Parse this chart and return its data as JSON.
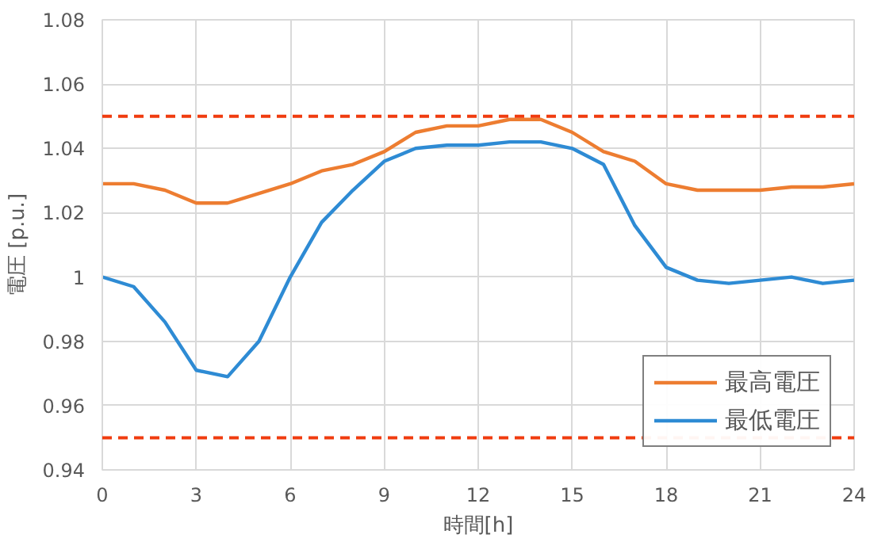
{
  "chart_data": {
    "type": "line",
    "xlabel": "時間[h]",
    "ylabel": "電圧 [p.u.]",
    "x": [
      0,
      1,
      2,
      3,
      4,
      5,
      6,
      7,
      8,
      9,
      10,
      11,
      12,
      13,
      14,
      15,
      16,
      17,
      18,
      19,
      20,
      21,
      22,
      23,
      24
    ],
    "series": [
      {
        "name": "最高電圧",
        "color": "#ed7d31",
        "values": [
          1.029,
          1.029,
          1.027,
          1.023,
          1.023,
          1.026,
          1.029,
          1.033,
          1.035,
          1.039,
          1.045,
          1.047,
          1.047,
          1.049,
          1.049,
          1.045,
          1.039,
          1.036,
          1.029,
          1.027,
          1.027,
          1.027,
          1.028,
          1.028,
          1.029
        ]
      },
      {
        "name": "最低電圧",
        "color": "#2e8bd4",
        "values": [
          1.0,
          0.997,
          0.986,
          0.971,
          0.969,
          0.98,
          1.0,
          1.017,
          1.027,
          1.036,
          1.04,
          1.041,
          1.041,
          1.042,
          1.042,
          1.04,
          1.035,
          1.016,
          1.003,
          0.999,
          0.998,
          0.999,
          1.0,
          0.998,
          0.999
        ]
      }
    ],
    "xlim": [
      0,
      24
    ],
    "xticks": [
      0,
      3,
      6,
      9,
      12,
      15,
      18,
      21,
      24
    ],
    "ylim": [
      0.94,
      1.08
    ],
    "yticks": [
      {
        "value": 0.94,
        "label": "0.94"
      },
      {
        "value": 0.96,
        "label": "0.96"
      },
      {
        "value": 0.98,
        "label": "0.98"
      },
      {
        "value": 1,
        "label": "1"
      },
      {
        "value": 1.02,
        "label": "1.02"
      },
      {
        "value": 1.04,
        "label": "1.04"
      },
      {
        "value": 1.06,
        "label": "1.06"
      },
      {
        "value": 1.08,
        "label": "1.08"
      }
    ],
    "ref_lines": [
      {
        "axis": "y",
        "value": 1.05,
        "color": "#f03c0f",
        "line_style": "dashed"
      },
      {
        "axis": "y",
        "value": 0.95,
        "color": "#f03c0f",
        "line_style": "dashed"
      }
    ],
    "grid": true,
    "legend": "bottom right",
    "marker": "none",
    "line_style": "solid"
  }
}
